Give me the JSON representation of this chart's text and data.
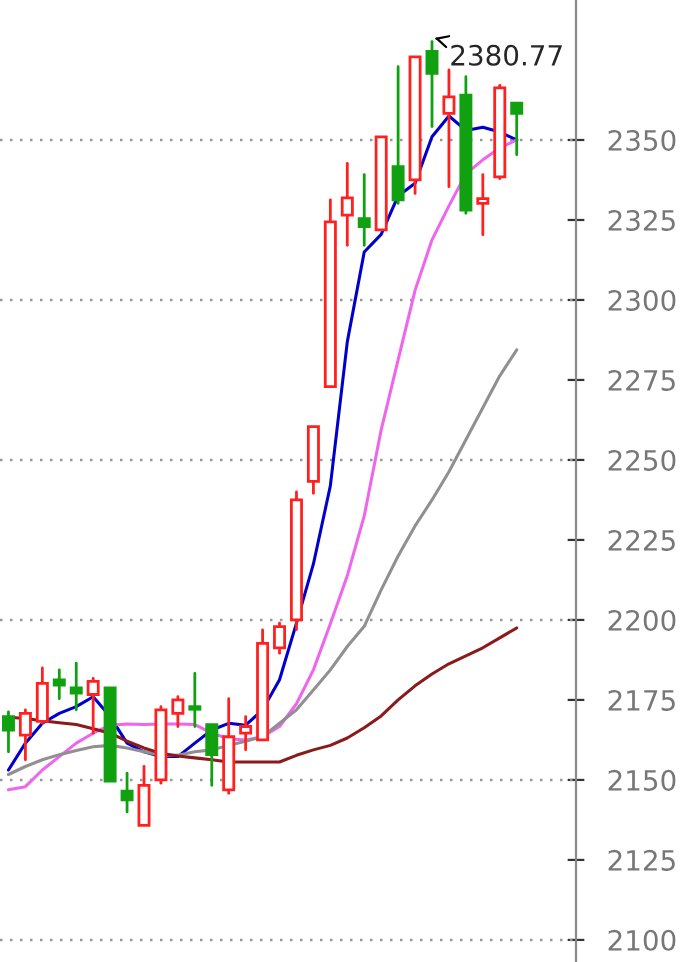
{
  "chart_data": {
    "type": "candlestick",
    "categories": [
      null,
      null,
      null,
      null,
      null,
      null,
      null,
      null,
      null,
      null,
      null,
      null,
      null,
      null,
      null,
      null,
      null,
      null,
      null,
      null,
      null,
      null,
      null,
      null,
      null,
      null,
      null,
      null,
      null,
      null,
      null
    ],
    "ohlc": [
      [
        2169.8,
        2171.3,
        2158.8,
        2165.6
      ],
      [
        2164.0,
        2171.9,
        2156.3,
        2170.8
      ],
      [
        2168.3,
        2185.0,
        2167.7,
        2180.2
      ],
      [
        2181.3,
        2184.4,
        2175.4,
        2179.6
      ],
      [
        2178.8,
        2186.5,
        2171.9,
        2177.1
      ],
      [
        2176.7,
        2181.7,
        2164.6,
        2180.8
      ],
      [
        2178.8,
        2178.8,
        2149.6,
        2149.6
      ],
      [
        2146.5,
        2152.1,
        2140.0,
        2143.8
      ],
      [
        2135.8,
        2154.2,
        2135.8,
        2148.3
      ],
      [
        2150.0,
        2172.9,
        2149.0,
        2171.9
      ],
      [
        2170.8,
        2176.0,
        2166.7,
        2175.0
      ],
      [
        2172.9,
        2183.3,
        2166.7,
        2172.1
      ],
      [
        2167.3,
        2167.3,
        2148.3,
        2157.9
      ],
      [
        2146.9,
        2175.4,
        2145.8,
        2163.5
      ],
      [
        2164.6,
        2169.8,
        2159.4,
        2166.7
      ],
      [
        2162.5,
        2196.9,
        2162.5,
        2192.7
      ],
      [
        2191.3,
        2199.0,
        2189.6,
        2197.9
      ],
      [
        2200.0,
        2240.0,
        2197.0,
        2237.5
      ],
      [
        2243.3,
        2260.4,
        2239.6,
        2260.4
      ],
      [
        2272.9,
        2331.3,
        2272.9,
        2324.4
      ],
      [
        2326.5,
        2342.7,
        2317.1,
        2331.9
      ],
      [
        2325.4,
        2339.2,
        2317.1,
        2322.9
      ],
      [
        2321.9,
        2351.0,
        2321.9,
        2351.0
      ],
      [
        2341.7,
        2372.9,
        2330.2,
        2331.3
      ],
      [
        2337.5,
        2376.0,
        2333.3,
        2376.0
      ],
      [
        2377.7,
        2380.77,
        2354.2,
        2370.8
      ],
      [
        2358.3,
        2371.9,
        2335.4,
        2363.5
      ],
      [
        2364.0,
        2369.8,
        2327.1,
        2328.1
      ],
      [
        2330.2,
        2339.2,
        2320.4,
        2331.7
      ],
      [
        2338.5,
        2367.1,
        2337.9,
        2366.3
      ],
      [
        2361.5,
        2361.5,
        2345.4,
        2358.3
      ]
    ],
    "colors": [
      "#10a010",
      "#ff2020",
      "#ff2020",
      "#10a010",
      "#10a010",
      "#ff2020",
      "#10a010",
      "#10a010",
      "#ff2020",
      "#ff2020",
      "#ff2020",
      "#10a010",
      "#10a010",
      "#ff2020",
      "#ff2020",
      "#ff2020",
      "#ff2020",
      "#ff2020",
      "#ff2020",
      "#ff2020",
      "#ff2020",
      "#10a010",
      "#ff2020",
      "#10a010",
      "#ff2020",
      "#10a010",
      "#ff2020",
      "#10a010",
      "#ff2020",
      "#ff2020",
      "#10a010"
    ],
    "series": [
      {
        "type": "line",
        "color": "#0000cc",
        "values": [
          2153.1,
          2161.5,
          2167.7,
          2170.8,
          2172.9,
          2176.0,
          2169.8,
          2161.5,
          2158.8,
          2157.3,
          2157.3,
          2161.5,
          2165.6,
          2167.7,
          2167.1,
          2171.9,
          2181.3,
          2199.0,
          2217.5,
          2241.9,
          2286.9,
          2315.0,
          2320.5,
          2332.5,
          2336.5,
          2351.0,
          2357.5,
          2353.0,
          2354.0,
          2352.5,
          2350.0
        ]
      },
      {
        "type": "line",
        "color": "#ee66ee",
        "values": [
          2146.9,
          2147.9,
          2153.1,
          2157.3,
          2161.5,
          2164.6,
          2167.1,
          2167.5,
          2167.3,
          2167.5,
          2167.5,
          2167.3,
          2164.6,
          2162.9,
          2162.5,
          2163.5,
          2166.7,
          2173.8,
          2184.4,
          2198.8,
          2213.8,
          2232.5,
          2259.4,
          2281.3,
          2303.0,
          2318.8,
          2329.4,
          2339.4,
          2343.8,
          2347.5,
          2350.0
        ]
      },
      {
        "type": "line",
        "color": "#909090",
        "values": [
          2151.7,
          2154.2,
          2156.3,
          2157.9,
          2159.2,
          2160.4,
          2160.8,
          2160.0,
          2158.8,
          2157.7,
          2157.7,
          2158.8,
          2159.4,
          2160.8,
          2162.1,
          2163.5,
          2167.7,
          2171.9,
          2178.1,
          2184.4,
          2191.7,
          2198.0,
          2209.4,
          2220.0,
          2229.4,
          2237.5,
          2246.3,
          2256.3,
          2266.3,
          2276.3,
          2284.4
        ]
      },
      {
        "type": "line",
        "color": "#8b1a1a",
        "values": [
          2169.6,
          2169.2,
          2168.5,
          2167.9,
          2167.3,
          2166.0,
          2164.6,
          2162.1,
          2160.0,
          2158.3,
          2157.5,
          2156.9,
          2156.3,
          2155.6,
          2155.6,
          2155.6,
          2155.6,
          2157.7,
          2159.4,
          2160.8,
          2163.1,
          2166.3,
          2170.0,
          2175.0,
          2179.4,
          2183.1,
          2186.3,
          2188.8,
          2191.3,
          2194.4,
          2197.5
        ]
      }
    ],
    "ylim": [
      2093.1,
      2393.75
    ],
    "yticks": [
      2100,
      2125,
      2150,
      2175,
      2200,
      2225,
      2250,
      2275,
      2300,
      2325,
      2350
    ],
    "grid": "y",
    "tick_labels": "y",
    "annotations": [
      "2380.77"
    ]
  }
}
